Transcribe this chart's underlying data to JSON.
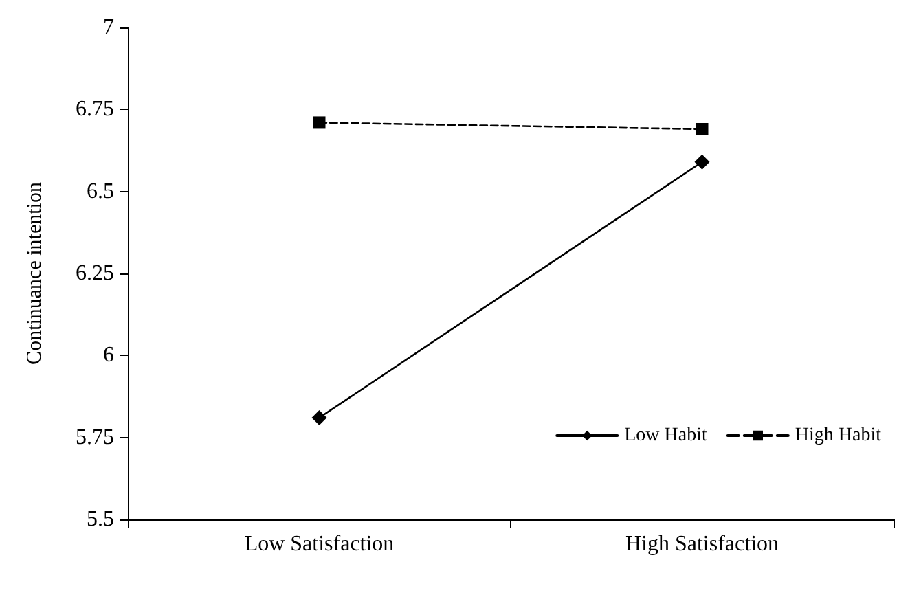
{
  "chart_data": {
    "type": "line",
    "ylabel": "Continuance intention",
    "categories": [
      "Low Satisfaction",
      "High Satisfaction"
    ],
    "series": [
      {
        "name": "Low Habit",
        "color": "#000000",
        "values": [
          5.81,
          6.59
        ],
        "marker": "diamond",
        "line_style": "solid"
      },
      {
        "name": "High Habit",
        "color": "#000000",
        "values": [
          6.71,
          6.69
        ],
        "marker": "square",
        "line_style": "dashed"
      }
    ],
    "ylim": [
      5.5,
      7
    ],
    "yticks": [
      5.5,
      5.75,
      6,
      6.25,
      6.5,
      6.75,
      7
    ],
    "grid": false,
    "legend": "bottom right"
  }
}
